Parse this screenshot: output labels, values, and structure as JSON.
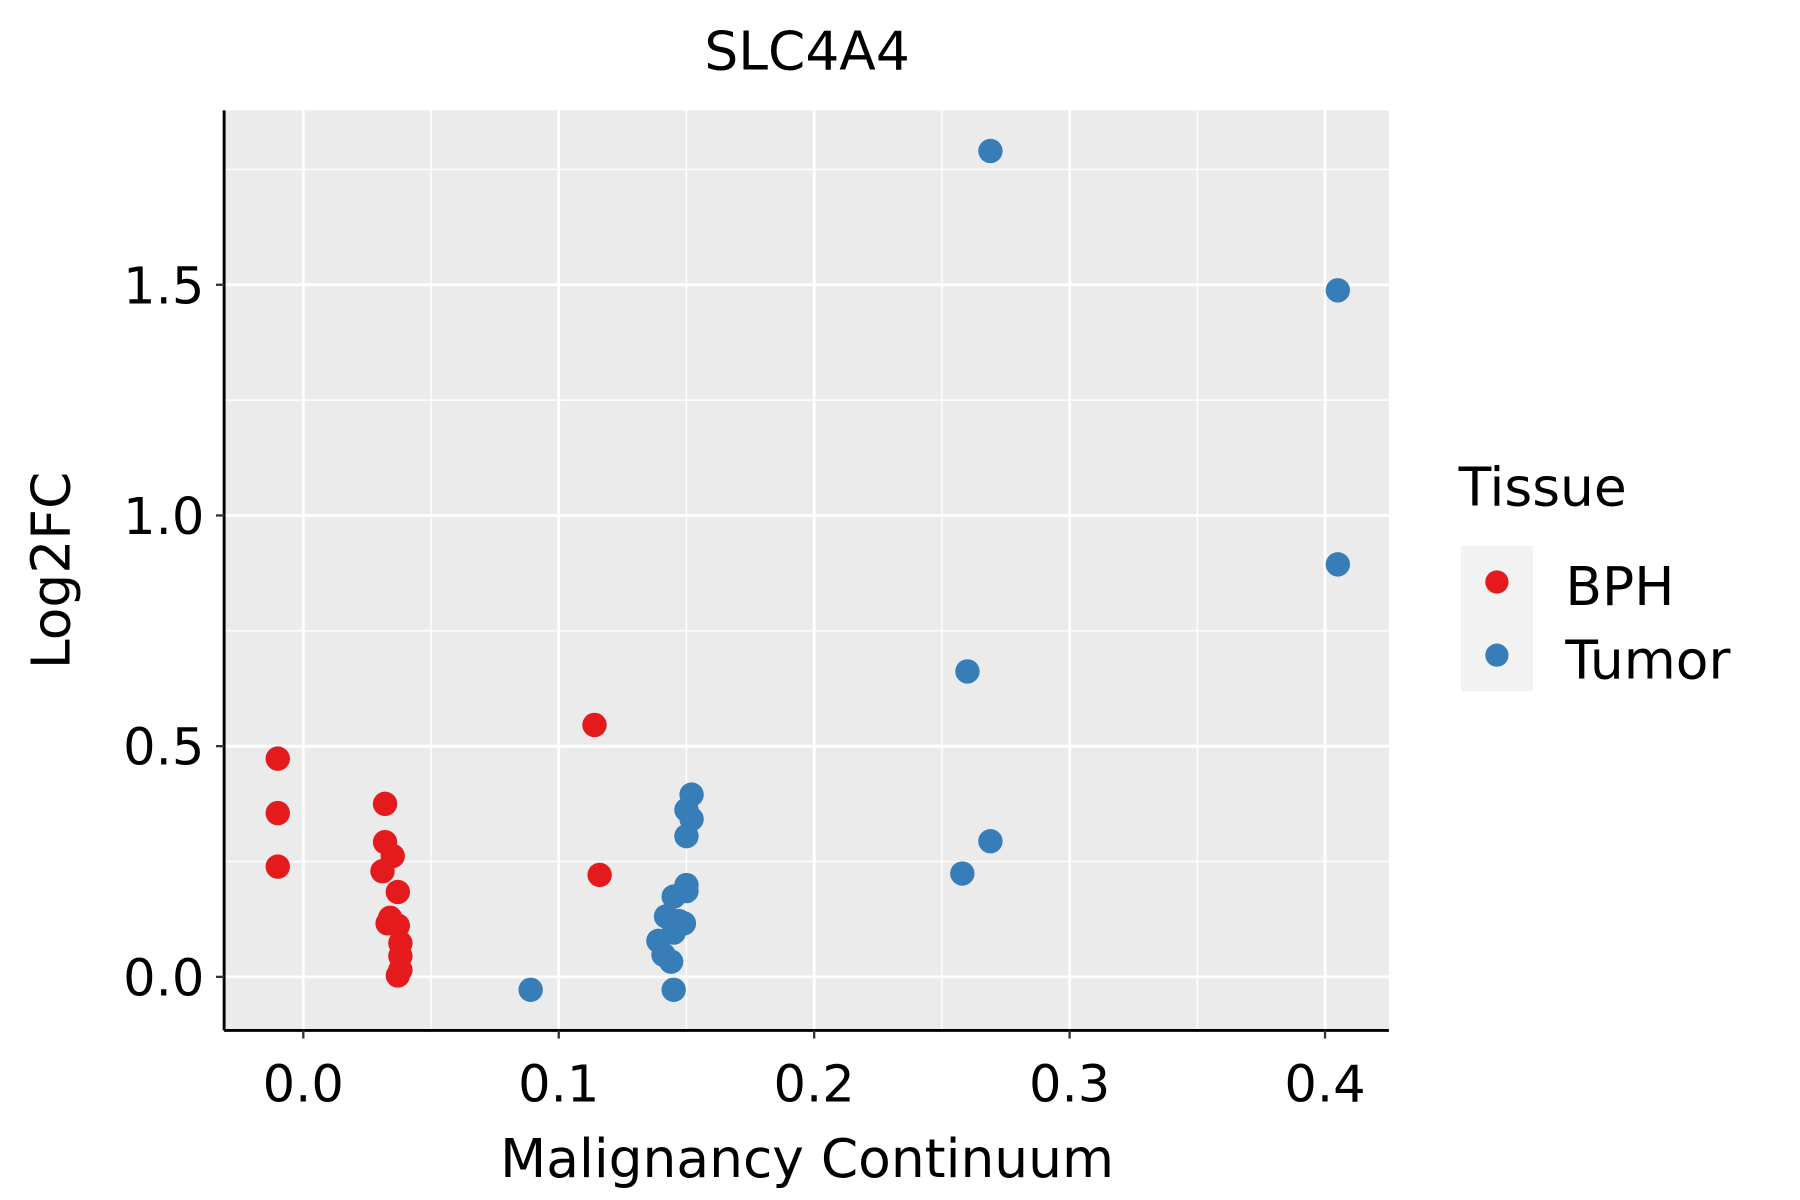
{
  "chart_data": {
    "type": "scatter",
    "title": "SLC4A4",
    "xlabel": "Malignancy Continuum",
    "ylabel": "Log2FC",
    "xlim": [
      -0.031,
      0.425
    ],
    "ylim": [
      -0.116,
      1.878
    ],
    "xticks": [
      0.0,
      0.1,
      0.2,
      0.3,
      0.4
    ],
    "xtick_labels": [
      "0.0",
      "0.1",
      "0.2",
      "0.3",
      "0.4"
    ],
    "yticks": [
      0.0,
      0.5,
      1.0,
      1.5
    ],
    "ytick_labels": [
      "0.0",
      "0.5",
      "1.0",
      "1.5"
    ],
    "grid": true,
    "legend": {
      "title": "Tissue",
      "placement": "right"
    },
    "series": [
      {
        "name": "BPH",
        "color": "#E41A1C",
        "points": [
          [
            -0.01,
            0.473
          ],
          [
            -0.01,
            0.355
          ],
          [
            -0.01,
            0.239
          ],
          [
            0.032,
            0.375
          ],
          [
            0.032,
            0.292
          ],
          [
            0.035,
            0.262
          ],
          [
            0.031,
            0.229
          ],
          [
            0.037,
            0.184
          ],
          [
            0.034,
            0.128
          ],
          [
            0.033,
            0.116
          ],
          [
            0.037,
            0.111
          ],
          [
            0.038,
            0.073
          ],
          [
            0.038,
            0.045
          ],
          [
            0.038,
            0.015
          ],
          [
            0.037,
            0.003
          ],
          [
            0.114,
            0.546
          ],
          [
            0.116,
            0.221
          ]
        ]
      },
      {
        "name": "Tumor",
        "color": "#377EB8",
        "points": [
          [
            0.089,
            -0.028
          ],
          [
            0.269,
            1.79
          ],
          [
            0.405,
            1.488
          ],
          [
            0.405,
            0.894
          ],
          [
            0.26,
            0.662
          ],
          [
            0.269,
            0.294
          ],
          [
            0.258,
            0.224
          ],
          [
            0.152,
            0.395
          ],
          [
            0.15,
            0.362
          ],
          [
            0.152,
            0.342
          ],
          [
            0.15,
            0.305
          ],
          [
            0.15,
            0.199
          ],
          [
            0.15,
            0.186
          ],
          [
            0.145,
            0.174
          ],
          [
            0.142,
            0.131
          ],
          [
            0.147,
            0.121
          ],
          [
            0.149,
            0.116
          ],
          [
            0.145,
            0.096
          ],
          [
            0.139,
            0.078
          ],
          [
            0.141,
            0.048
          ],
          [
            0.144,
            0.033
          ],
          [
            0.145,
            -0.028
          ]
        ]
      }
    ]
  }
}
